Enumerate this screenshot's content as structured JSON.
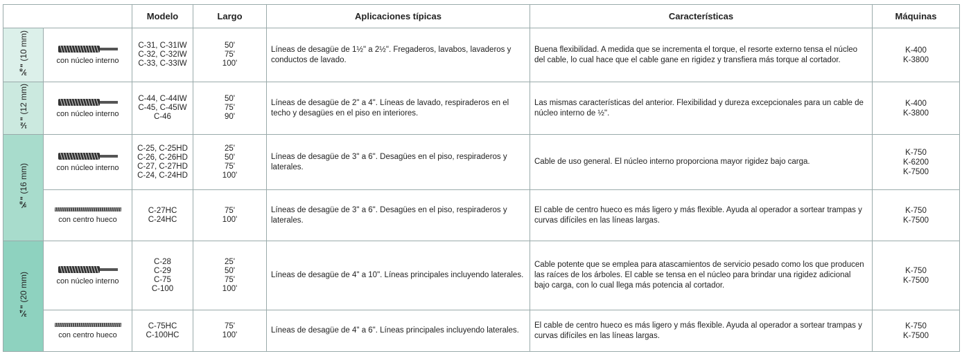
{
  "header": {
    "columns": [
      "Modelo",
      "Largo",
      "Aplicaciones típicas",
      "Características",
      "Máquinas"
    ]
  },
  "groups": [
    {
      "size": "⅜\"",
      "metric": "(10 mm)",
      "rows": [
        {
          "cable": "con núcleo interno",
          "models": [
            "C-31, C-31IW",
            "C-32, C-32IW",
            "C-33, C-33IW"
          ],
          "lengths": [
            "50'",
            "75'",
            "100'"
          ],
          "applications": "Líneas de desagüe de 1½\" a 2½\". Fregaderos, lavabos, lavaderos y conductos de lavado.",
          "features": "Buena flexibilidad. A medida que se incrementa el torque, el resorte externo tensa el núcleo del cable, lo cual hace que el cable gane en rigidez y transfiera más torque al cortador.",
          "machines": [
            "K-400",
            "K-3800"
          ]
        }
      ]
    },
    {
      "size": "½\"",
      "metric": "(12 mm)",
      "rows": [
        {
          "cable": "con núcleo interno",
          "models": [
            "C-44, C-44IW",
            "C-45, C-45IW",
            "C-46"
          ],
          "lengths": [
            "50'",
            "75'",
            "90'"
          ],
          "applications": "Líneas de desagüe de 2\" a 4\". Líneas de lavado, respiraderos en el techo y desagües en el piso en interiores.",
          "features": "Las mismas características del anterior. Flexibilidad y dureza excepcionales para un cable de núcleo interno de ½\".",
          "machines": [
            "K-400",
            "K-3800"
          ]
        }
      ]
    },
    {
      "size": "⅝\"",
      "metric": "(16 mm)",
      "rows": [
        {
          "cable": "con núcleo interno",
          "models": [
            "C-25, C-25HD",
            "C-26, C-26HD",
            "C-27, C-27HD",
            "C-24, C-24HD"
          ],
          "lengths": [
            "25'",
            "50'",
            "75'",
            "100'"
          ],
          "applications": "Líneas de desagüe de 3\" a 6\". Desagües en el piso, respiraderos y laterales.",
          "features": "Cable de uso general. El núcleo interno proporciona mayor rigidez bajo carga.",
          "machines": [
            "K-750",
            "K-6200",
            "K-7500"
          ]
        },
        {
          "cable": "con centro hueco",
          "models": [
            "C-27HC",
            "C-24HC"
          ],
          "lengths": [
            "75'",
            "100'"
          ],
          "applications": "Líneas de desagüe de 3\" a 6\". Desagües en el piso, respiraderos y laterales.",
          "features": "El cable de centro hueco es más ligero y más flexible. Ayuda al operador a sortear trampas y curvas difíciles en las líneas largas.",
          "machines": [
            "K-750",
            "K-7500"
          ]
        }
      ]
    },
    {
      "size": "¾\"",
      "metric": "(20 mm)",
      "rows": [
        {
          "cable": "con núcleo interno",
          "models": [
            "C-28",
            "C-29",
            "C-75",
            "C-100"
          ],
          "lengths": [
            "25'",
            "50'",
            "75'",
            "100'"
          ],
          "applications": "Líneas de desagüe de 4\" a 10\". Líneas principales incluyendo laterales.",
          "features": "Cable potente que se emplea para atascamientos de servicio pesado como los que producen las raíces de los árboles. El cable se tensa en el núcleo para brindar una rigidez adicional bajo carga, con lo cual llega más potencia al cortador.",
          "machines": [
            "K-750",
            "K-7500"
          ]
        },
        {
          "cable": "con centro hueco",
          "models": [
            "C-75HC",
            "C-100HC"
          ],
          "lengths": [
            "75'",
            "100'"
          ],
          "applications": "Líneas de desagüe de 4\" a 6\". Líneas principales incluyendo laterales.",
          "features": "El cable de centro hueco es más ligero y más flexible. Ayuda al operador a sortear trampas y curvas difíciles en las líneas largas.",
          "machines": [
            "K-750",
            "K-7500"
          ]
        }
      ]
    }
  ]
}
